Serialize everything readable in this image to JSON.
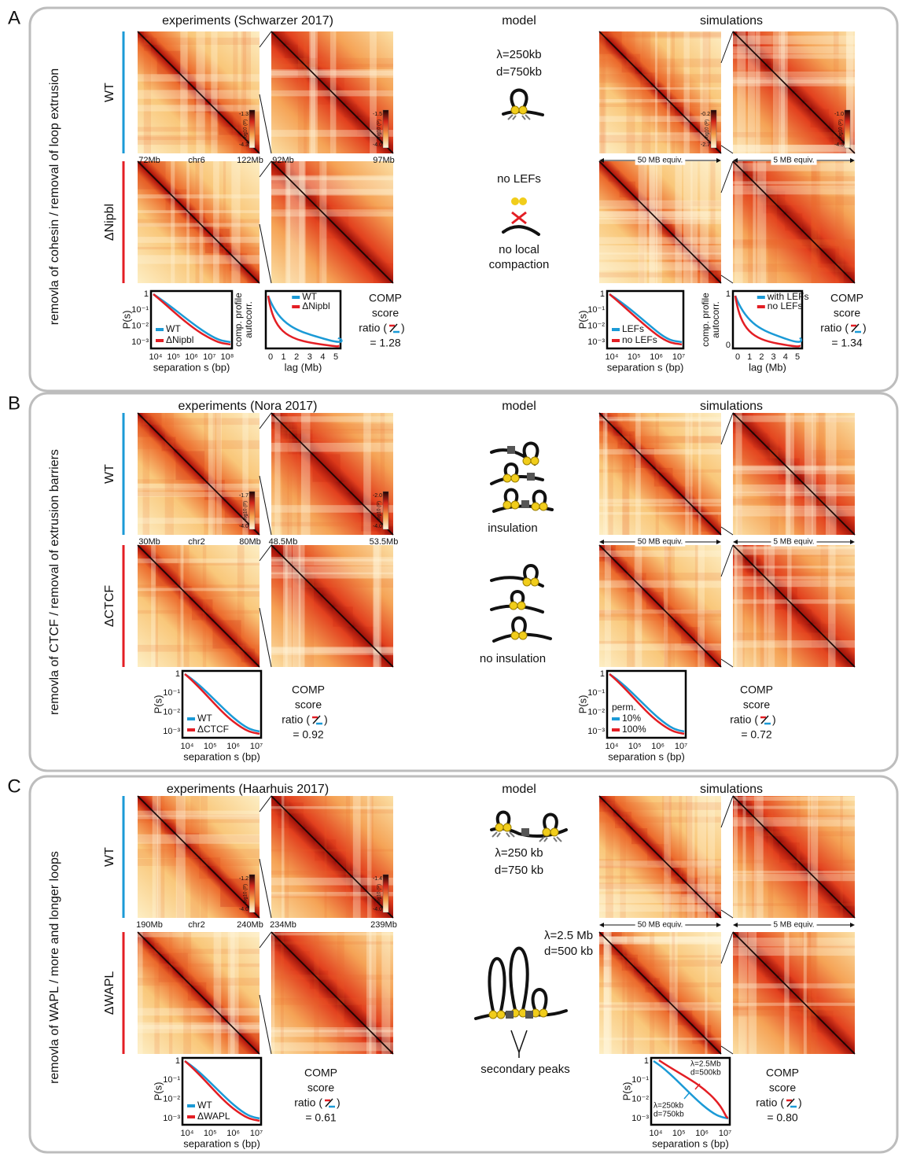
{
  "panels": [
    {
      "label": "A",
      "side_label": "removla of cohesin / removal of loop extrusion",
      "titles": [
        "experiments (Schwarzer 2017)",
        "model",
        "simulations"
      ],
      "conditions": [
        "WT",
        "ΔNipbl"
      ],
      "exp_axis": [
        "72Mb",
        "chr6",
        "122Mb"
      ],
      "zoom_axis": [
        "92Mb",
        "97Mb"
      ],
      "sim_axis": [
        "50 MB equiv.",
        "5 MB equiv."
      ],
      "colorbar_title": "log10 (P)",
      "colorbars": [
        [
          "-1.3",
          "-4.3"
        ],
        [
          "-1.5",
          "-4.0"
        ],
        [
          "-0.2",
          "-2.7"
        ],
        [
          "-1.0",
          "-4.3"
        ]
      ],
      "model_text": [
        "λ=250kb",
        "d=750kb",
        "no LEFs",
        "no local",
        "compaction"
      ],
      "plots": [
        {
          "ylabel": [
            "P(s)"
          ],
          "yticks": [
            "1",
            "10⁻¹",
            "10⁻²",
            "10⁻³"
          ],
          "xticks": [
            "10⁴",
            "10⁵",
            "10⁶",
            "10⁷",
            "10⁸"
          ],
          "xlabel": "separation s (bp)",
          "legend": [
            "WT",
            "ΔNipbl"
          ]
        },
        {
          "ylabel": [
            "comp. profile",
            "autocorr."
          ],
          "yticks": [],
          "xticks": [
            "0",
            "1",
            "2",
            "3",
            "4",
            "5"
          ],
          "xlabel": "lag (Mb)",
          "legend": [
            "WT",
            "ΔNipbl"
          ]
        },
        {
          "ylabel": [
            "P(s)"
          ],
          "yticks": [
            "1",
            "10⁻¹",
            "10⁻²",
            "10⁻³"
          ],
          "xticks": [
            "10⁴",
            "10⁵",
            "10⁶",
            "10⁷"
          ],
          "xlabel": "separation s (bp)",
          "legend": [
            "LEFs",
            "no LEFs"
          ]
        },
        {
          "ylabel": [
            "comp. profile",
            "autocorr."
          ],
          "yticks": [
            "1",
            "0"
          ],
          "xticks": [
            "0",
            "1",
            "2",
            "3",
            "4",
            "5"
          ],
          "xlabel": "lag (Mb)",
          "legend": [
            "with LEFs",
            "no LEFs"
          ]
        }
      ],
      "comp": [
        [
          "COMP",
          "score",
          "ratio (",
          ")",
          "= 1.28"
        ],
        [
          "COMP",
          "score",
          "ratio (",
          ")",
          "= 1.34"
        ]
      ]
    },
    {
      "label": "B",
      "side_label": "removla of CTCF / removal of extrusion barriers",
      "titles": [
        "experiments (Nora 2017)",
        "model",
        "simulations"
      ],
      "conditions": [
        "WT",
        "ΔCTCF"
      ],
      "exp_axis": [
        "30Mb",
        "chr2",
        "80Mb"
      ],
      "zoom_axis": [
        "48.5Mb",
        "53.5Mb"
      ],
      "sim_axis": [
        "50 MB equiv.",
        "5 MB equiv."
      ],
      "colorbar_title": "log10 (P)",
      "colorbars": [
        [
          "-1.7",
          "-4.0"
        ],
        [
          "-2.0",
          "-4.0"
        ]
      ],
      "model_text": [
        "insulation",
        "no insulation"
      ],
      "plots": [
        {
          "ylabel": [
            "P(s)"
          ],
          "yticks": [
            "1",
            "10⁻¹",
            "10⁻²",
            "10⁻³"
          ],
          "xticks": [
            "10⁴",
            "10⁵",
            "10⁶",
            "10⁷"
          ],
          "xlabel": "separation s (bp)",
          "legend": [
            "WT",
            "ΔCTCF"
          ]
        },
        {
          "ylabel": [
            "P(s)"
          ],
          "yticks": [
            "1",
            "10⁻¹",
            "10⁻²",
            "10⁻³"
          ],
          "xticks": [
            "10⁴",
            "10⁵",
            "10⁶",
            "10⁷"
          ],
          "xlabel": "separation s (bp)",
          "legend_title": "perm.",
          "legend": [
            "10%",
            "100%"
          ]
        }
      ],
      "comp": [
        [
          "COMP",
          "score",
          "ratio (",
          ")",
          "= 0.92"
        ],
        [
          "COMP",
          "score",
          "ratio (",
          ")",
          "= 0.72"
        ]
      ]
    },
    {
      "label": "C",
      "side_label": "removla of WAPL / more and longer loops",
      "titles": [
        "experiments (Haarhuis 2017)",
        "model",
        "simulations"
      ],
      "conditions": [
        "WT",
        "ΔWAPL"
      ],
      "exp_axis": [
        "190Mb",
        "chr2",
        "240Mb"
      ],
      "zoom_axis": [
        "234Mb",
        "239Mb"
      ],
      "sim_axis": [
        "50 MB equiv.",
        "5 MB equiv."
      ],
      "colorbar_title": "log10 (P)",
      "colorbars": [
        [
          "-1.2",
          "-4.0"
        ],
        [
          "-1.4",
          "-4.0"
        ]
      ],
      "model_text": [
        "λ=250 kb",
        "d=750 kb",
        "λ=2.5 Mb",
        "d=500 kb",
        "secondary peaks"
      ],
      "plots": [
        {
          "ylabel": [
            "P(s)"
          ],
          "yticks": [
            "1",
            "10⁻¹",
            "10⁻²",
            "10⁻³"
          ],
          "xticks": [
            "10⁴",
            "10⁵",
            "10⁶",
            "10⁷"
          ],
          "xlabel": "separation s (bp)",
          "legend": [
            "WT",
            "ΔWAPL"
          ]
        },
        {
          "ylabel": [
            "P(s)"
          ],
          "yticks": [
            "1",
            "10⁻¹",
            "10⁻²",
            "10⁻³"
          ],
          "xticks": [
            "10⁴",
            "10⁵",
            "10⁶",
            "10⁷"
          ],
          "xlabel": "separation s (bp)",
          "annotations": [
            "λ=2.5Mb",
            "d=500kb",
            "λ=250kb",
            "d=750kb"
          ]
        }
      ],
      "comp": [
        [
          "COMP",
          "score",
          "ratio (",
          ")",
          "= 0.61"
        ],
        [
          "COMP",
          "score",
          "ratio (",
          ")",
          "= 0.80"
        ]
      ]
    }
  ]
}
